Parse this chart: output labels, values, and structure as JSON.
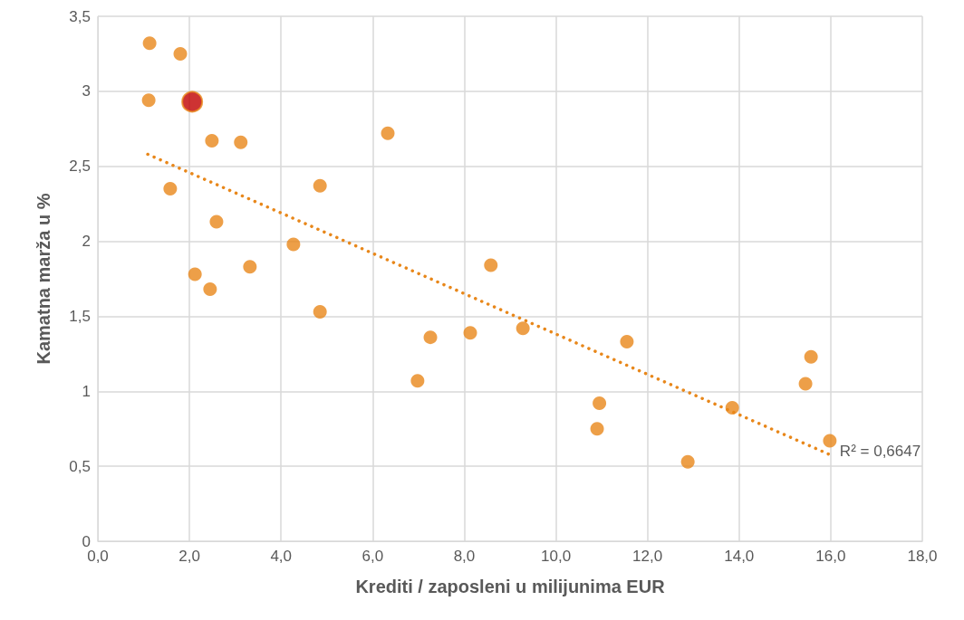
{
  "chart_data": {
    "type": "scatter",
    "xlabel": "Krediti / zaposleni u milijunima EUR",
    "ylabel": "Kamatna marža u %",
    "xlim": [
      0,
      18
    ],
    "xticks": [
      {
        "value": 0,
        "label": "0,0"
      },
      {
        "value": 2,
        "label": "2,0"
      },
      {
        "value": 4,
        "label": "4,0"
      },
      {
        "value": 6,
        "label": "6,0"
      },
      {
        "value": 8,
        "label": "8,0"
      },
      {
        "value": 10,
        "label": "10,0"
      },
      {
        "value": 12,
        "label": "12,0"
      },
      {
        "value": 14,
        "label": "14,0"
      },
      {
        "value": 16,
        "label": "16,0"
      },
      {
        "value": 18,
        "label": "18,0"
      }
    ],
    "ylim": [
      0,
      3.5
    ],
    "yticks": [
      0,
      {
        "value": 0.5,
        "label": "0,5"
      },
      1,
      {
        "value": 1.5,
        "label": "1,5"
      },
      2,
      {
        "value": 2.5,
        "label": "2,5"
      },
      3,
      {
        "value": 3.5,
        "label": "3,5"
      }
    ],
    "grid": true,
    "legend": false,
    "marker": "circle",
    "series": [
      {
        "color": "#e8871a",
        "x": [
          1.13,
          1.8,
          1.11,
          2.49,
          3.12,
          1.58,
          2.59,
          2.12,
          2.45,
          3.32,
          4.27,
          4.85,
          4.85,
          6.33,
          6.98,
          7.26,
          8.13,
          8.58,
          9.28,
          10.9,
          10.95,
          11.55,
          12.88,
          13.85,
          15.45,
          15.57,
          15.98
        ],
        "values": [
          3.32,
          3.25,
          2.94,
          2.67,
          2.66,
          2.35,
          2.13,
          1.78,
          1.68,
          1.83,
          1.98,
          2.37,
          1.53,
          2.72,
          1.07,
          1.36,
          1.39,
          1.84,
          1.42,
          0.75,
          0.92,
          1.33,
          0.53,
          0.89,
          1.05,
          1.23,
          0.67
        ]
      },
      {
        "color": "#c00000",
        "x": [
          2.06
        ],
        "values": [
          2.93
        ]
      },
      {
        "type": "line",
        "color": "#e8871a",
        "line_style": "dotted",
        "marker": "none",
        "x": [
          1.09,
          15.96
        ],
        "values": [
          2.58,
          0.58
        ]
      }
    ],
    "annotations": [
      {
        "text": "R² = 0,6647",
        "x": 15.96,
        "y": 0.58
      }
    ]
  }
}
